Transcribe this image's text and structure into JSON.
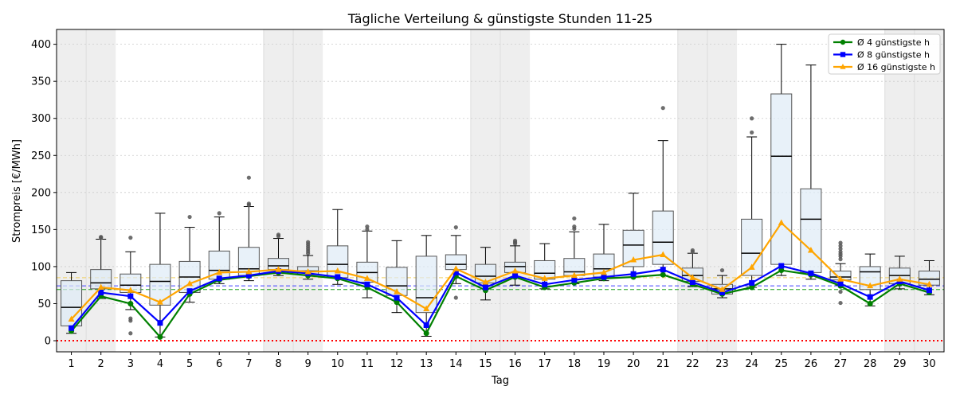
{
  "chart_data": {
    "type": "box+line",
    "title": "Tägliche Verteilung & günstigste Stunden 11-25",
    "xlabel": "Tag",
    "ylabel": "Strompreis [€/MWh]",
    "ylim": [
      -15,
      420
    ],
    "xlim": [
      0.5,
      30.5
    ],
    "yticks": [
      0,
      50,
      100,
      150,
      200,
      250,
      300,
      350,
      400
    ],
    "categories": [
      1,
      2,
      3,
      4,
      5,
      6,
      7,
      8,
      9,
      10,
      11,
      12,
      13,
      14,
      15,
      16,
      17,
      18,
      19,
      20,
      21,
      22,
      23,
      24,
      25,
      26,
      27,
      28,
      29,
      30
    ],
    "grid": true,
    "legend_position": "top-right",
    "weekend_days": [
      1,
      2,
      8,
      9,
      15,
      16,
      22,
      23,
      29,
      30
    ],
    "boxes": [
      {
        "day": 1,
        "whislo": 10,
        "q1": 20,
        "med": 45,
        "q3": 81,
        "whishi": 92,
        "fliers": []
      },
      {
        "day": 2,
        "whislo": 57,
        "q1": 70,
        "med": 78,
        "q3": 96,
        "whishi": 137,
        "fliers": [
          139,
          140
        ]
      },
      {
        "day": 3,
        "whislo": 42,
        "q1": 65,
        "med": 75,
        "q3": 90,
        "whishi": 120,
        "fliers": [
          139,
          30,
          27,
          10
        ]
      },
      {
        "day": 4,
        "whislo": 5,
        "q1": 48,
        "med": 80,
        "q3": 103,
        "whishi": 172,
        "fliers": []
      },
      {
        "day": 5,
        "whislo": 52,
        "q1": 65,
        "med": 86,
        "q3": 107,
        "whishi": 153,
        "fliers": [
          167
        ]
      },
      {
        "day": 6,
        "whislo": 77,
        "q1": 83,
        "med": 95,
        "q3": 121,
        "whishi": 167,
        "fliers": [
          172
        ]
      },
      {
        "day": 7,
        "whislo": 81,
        "q1": 88,
        "med": 97,
        "q3": 126,
        "whishi": 181,
        "fliers": [
          183,
          185,
          220
        ]
      },
      {
        "day": 8,
        "whislo": 88,
        "q1": 96,
        "med": 101,
        "q3": 111,
        "whishi": 138,
        "fliers": [
          141,
          143
        ]
      },
      {
        "day": 9,
        "whislo": 83,
        "q1": 89,
        "med": 94,
        "q3": 100,
        "whishi": 115,
        "fliers": [
          118,
          121,
          124,
          127,
          130,
          133
        ]
      },
      {
        "day": 10,
        "whislo": 76,
        "q1": 85,
        "med": 103,
        "q3": 128,
        "whishi": 177,
        "fliers": []
      },
      {
        "day": 11,
        "whislo": 58,
        "q1": 79,
        "med": 92,
        "q3": 106,
        "whishi": 148,
        "fliers": [
          150,
          154
        ]
      },
      {
        "day": 12,
        "whislo": 38,
        "q1": 61,
        "med": 74,
        "q3": 99,
        "whishi": 135,
        "fliers": []
      },
      {
        "day": 13,
        "whislo": 6,
        "q1": 38,
        "med": 58,
        "q3": 114,
        "whishi": 142,
        "fliers": []
      },
      {
        "day": 14,
        "whislo": 77,
        "q1": 96,
        "med": 103,
        "q3": 116,
        "whishi": 142,
        "fliers": [
          153,
          58
        ]
      },
      {
        "day": 15,
        "whislo": 55,
        "q1": 78,
        "med": 87,
        "q3": 103,
        "whishi": 126,
        "fliers": []
      },
      {
        "day": 16,
        "whislo": 75,
        "q1": 92,
        "med": 100,
        "q3": 106,
        "whishi": 128,
        "fliers": [
          131,
          133,
          135
        ]
      },
      {
        "day": 17,
        "whislo": 70,
        "q1": 83,
        "med": 91,
        "q3": 108,
        "whishi": 131,
        "fliers": []
      },
      {
        "day": 18,
        "whislo": 77,
        "q1": 88,
        "med": 93,
        "q3": 111,
        "whishi": 147,
        "fliers": [
          151,
          154,
          165
        ]
      },
      {
        "day": 19,
        "whislo": 81,
        "q1": 86,
        "med": 97,
        "q3": 117,
        "whishi": 157,
        "fliers": []
      },
      {
        "day": 20,
        "whislo": 86,
        "q1": 100,
        "med": 129,
        "q3": 149,
        "whishi": 199,
        "fliers": []
      },
      {
        "day": 21,
        "whislo": 88,
        "q1": 103,
        "med": 133,
        "q3": 175,
        "whishi": 270,
        "fliers": [
          314
        ]
      },
      {
        "day": 22,
        "whislo": 73,
        "q1": 80,
        "med": 88,
        "q3": 98,
        "whishi": 118,
        "fliers": [
          120,
          122
        ]
      },
      {
        "day": 23,
        "whislo": 58,
        "q1": 63,
        "med": 70,
        "q3": 76,
        "whishi": 88,
        "fliers": [
          95
        ]
      },
      {
        "day": 24,
        "whislo": 72,
        "q1": 88,
        "med": 118,
        "q3": 164,
        "whishi": 275,
        "fliers": [
          281,
          300
        ]
      },
      {
        "day": 25,
        "whislo": 88,
        "q1": 103,
        "med": 249,
        "q3": 333,
        "whishi": 400,
        "fliers": []
      },
      {
        "day": 26,
        "whislo": 83,
        "q1": 92,
        "med": 164,
        "q3": 205,
        "whishi": 372,
        "fliers": []
      },
      {
        "day": 27,
        "whislo": 75,
        "q1": 82,
        "med": 86,
        "q3": 94,
        "whishi": 104,
        "fliers": [
          110,
          114,
          117,
          120,
          124,
          128,
          132,
          66,
          51
        ]
      },
      {
        "day": 28,
        "whislo": 47,
        "q1": 69,
        "med": 93,
        "q3": 100,
        "whishi": 117,
        "fliers": []
      },
      {
        "day": 29,
        "whislo": 70,
        "q1": 77,
        "med": 88,
        "q3": 98,
        "whishi": 114,
        "fliers": []
      },
      {
        "day": 30,
        "whislo": 62,
        "q1": 75,
        "med": 83,
        "q3": 94,
        "whishi": 108,
        "fliers": []
      }
    ],
    "series": [
      {
        "name": "Ø 4 günstigste h",
        "color": "#008000",
        "marker": "circle",
        "values": [
          13,
          60,
          50,
          5,
          63,
          82,
          87,
          92,
          88,
          84,
          72,
          52,
          10,
          87,
          68,
          86,
          72,
          78,
          84,
          86,
          89,
          76,
          63,
          72,
          95,
          89,
          74,
          50,
          77,
          65
        ]
      },
      {
        "name": "Ø 8 günstigste h",
        "color": "#0000ff",
        "marker": "square",
        "values": [
          17,
          65,
          60,
          24,
          67,
          84,
          88,
          94,
          91,
          86,
          76,
          58,
          21,
          92,
          72,
          88,
          76,
          82,
          86,
          90,
          96,
          79,
          65,
          78,
          101,
          91,
          77,
          59,
          80,
          68
        ]
      },
      {
        "name": "Ø 16 günstigste h",
        "color": "#ffa500",
        "marker": "triangle",
        "values": [
          29,
          72,
          68,
          52,
          77,
          92,
          93,
          96,
          93,
          94,
          84,
          66,
          43,
          97,
          79,
          94,
          84,
          88,
          92,
          109,
          116,
          85,
          69,
          99,
          159,
          122,
          83,
          74,
          83,
          76
        ]
      }
    ],
    "reference_lines": [
      {
        "y": 85,
        "color": "#f0d060",
        "style": "dashed"
      },
      {
        "y": 74,
        "color": "#4040ff",
        "style": "dashed"
      },
      {
        "y": 69,
        "color": "#20a020",
        "style": "dashed"
      },
      {
        "y": 0,
        "color": "#ff0000",
        "style": "dotted"
      }
    ]
  }
}
